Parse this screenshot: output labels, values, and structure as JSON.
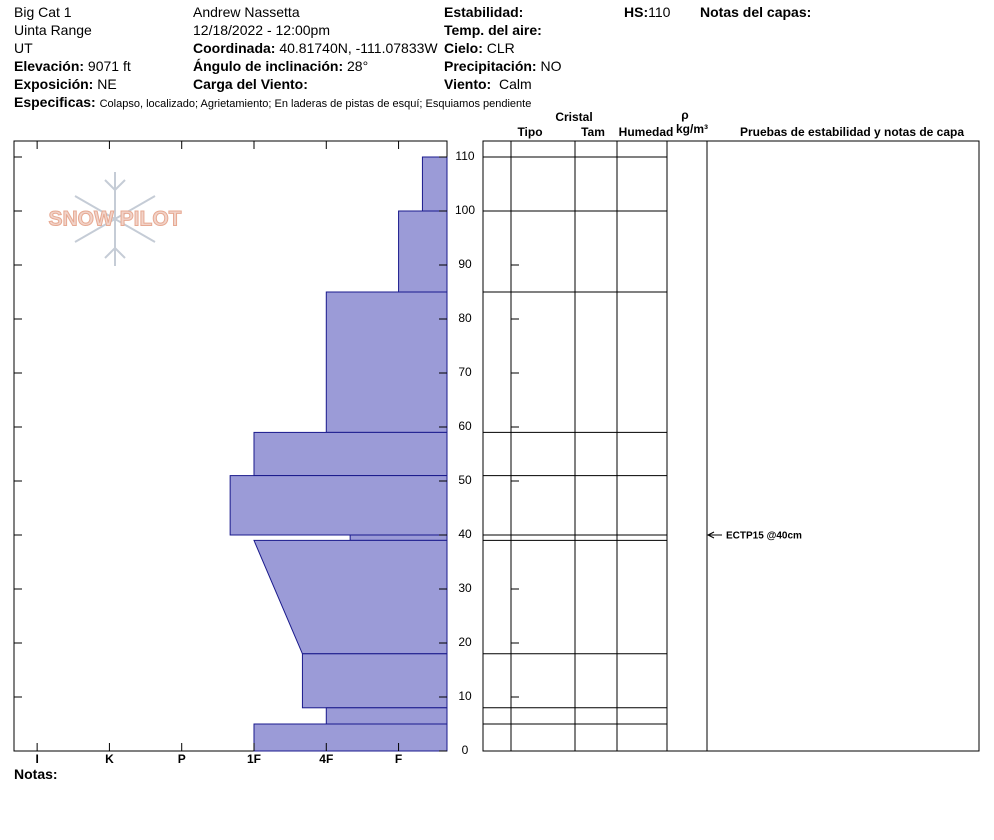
{
  "header": {
    "site": "Big Cat 1",
    "range": "Uinta Range",
    "state": "UT",
    "elevation": {
      "label": "Elevación:",
      "value": "9071 ft"
    },
    "aspect": {
      "label": "Exposición:",
      "value": "NE"
    },
    "observer": "Andrew Nassetta",
    "datetime": "12/18/2022 - 12:00pm",
    "coordinates": {
      "label": "Coordinada:",
      "value": "40.81740N, -111.07833W"
    },
    "slope": {
      "label": "Ángulo de inclinación:",
      "value": "28°"
    },
    "wind_loading": {
      "label": "Carga del Viento:"
    },
    "stability": {
      "label": "Estabilidad:"
    },
    "air_temp": {
      "label": "Temp. del aire:"
    },
    "sky": {
      "label": "Cielo:",
      "value": "CLR"
    },
    "precip": {
      "label": "Precipitación:",
      "value": "NO"
    },
    "wind": {
      "label": "Viento:",
      "value": "Calm"
    },
    "hs": {
      "label": "HS:",
      "value": "110"
    },
    "layer_notes": {
      "label": "Notas del capas:"
    },
    "specifics": {
      "label": "Especificas:",
      "value": "Colapso, localizado;  Agrietamiento;  En laderas de pistas de esquí;  Esquiamos pendiente"
    }
  },
  "chart_data": {
    "type": "profile",
    "logo": "SNOW PILOT",
    "ylim": [
      0,
      110
    ],
    "yticks": [
      0,
      10,
      20,
      30,
      40,
      50,
      60,
      70,
      80,
      90,
      100,
      110
    ],
    "xlim": [
      6.32,
      0.33
    ],
    "xticks": [
      {
        "value": 6,
        "label": "I"
      },
      {
        "value": 5,
        "label": "K"
      },
      {
        "value": 4,
        "label": "P"
      },
      {
        "value": 3,
        "label": "1F"
      },
      {
        "value": 2,
        "label": "4F"
      },
      {
        "value": 1,
        "label": "F"
      }
    ],
    "color": "#9b9bd7",
    "edge": "#1a1a8c",
    "layers": [
      {
        "top": 110,
        "bottom": 100,
        "hardness": 0.67
      },
      {
        "top": 100,
        "bottom": 85,
        "hardness": 1
      },
      {
        "top": 85,
        "bottom": 59,
        "hardness": 2
      },
      {
        "top": 59,
        "bottom": 51,
        "hardness": 3
      },
      {
        "top": 51,
        "bottom": 40,
        "hardness": 3.33
      },
      {
        "top": 40,
        "bottom": 39,
        "hardness": 1.67
      },
      {
        "top": 39,
        "bottom": 18,
        "hardness_top": 3,
        "hardness_bottom": 2.33
      },
      {
        "top": 18,
        "bottom": 8,
        "hardness": 2.33
      },
      {
        "top": 8,
        "bottom": 5,
        "hardness": 2
      },
      {
        "top": 5,
        "bottom": 0,
        "hardness": 3
      }
    ],
    "columns": {
      "type": "Tipo",
      "crystal": "Cristal",
      "size": "Tam",
      "moisture": "Humedad",
      "rho": "ρ",
      "density_unit": "kg/m³",
      "tests": "Pruebas de estabilidad y notas de capa"
    },
    "tests": [
      {
        "depth": 40,
        "label": "ECTP15 @40cm"
      }
    ]
  },
  "notes": {
    "label": "Notas:"
  }
}
